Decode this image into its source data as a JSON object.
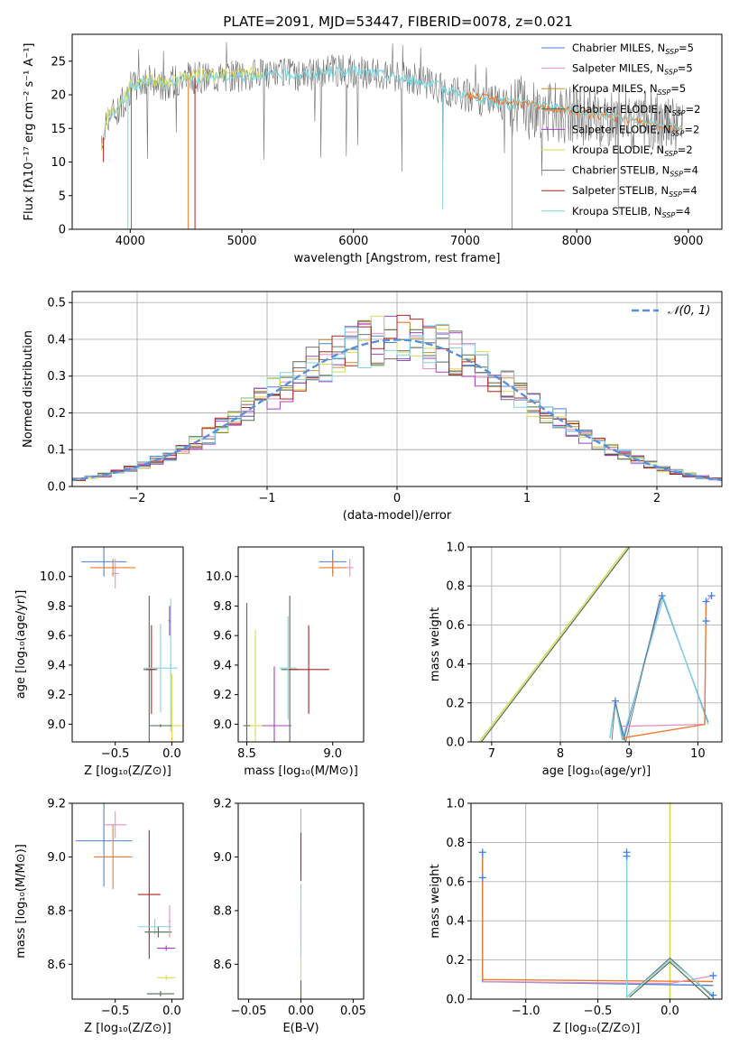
{
  "figure": {
    "title": "PLATE=2091, MJD=53447, FIBERID=0078, z=0.021",
    "colors": {
      "chabrier_miles": "#4a80d8",
      "salpeter_miles": "#e98fbf",
      "kroupa_miles": "#c8902c",
      "chabrier_elodie": "#4f6f4f",
      "salpeter_elodie": "#a040c0",
      "kroupa_elodie": "#dada55",
      "chabrier_stelib": "#707070",
      "salpeter_stelib": "#b22222",
      "kroupa_stelib": "#7fd6dc",
      "orange": "#ed7a2e",
      "normal": "#5b8fdd",
      "grid": "#b0b0b0"
    }
  },
  "chart_data": [
    {
      "id": "spectrum",
      "type": "line",
      "title": "PLATE=2091, MJD=53447, FIBERID=0078, z=0.021",
      "xlabel": "wavelength [Angstrom, rest frame]",
      "ylabel": "Flux [fλ10⁻¹⁷ erg cm⁻² s⁻¹ A⁻¹]",
      "xlim": [
        3480,
        9300
      ],
      "ylim": [
        0,
        29
      ],
      "xticks": [
        4000,
        5000,
        6000,
        7000,
        8000,
        9000
      ],
      "yticks": [
        0,
        5,
        10,
        15,
        20,
        25
      ],
      "grid": false,
      "legend_position": "top-right",
      "series": [
        {
          "name": "Chabrier MILES, N_SSP=5",
          "label": "Chabrier MILES, N",
          "sub": "SSP",
          "suffix": "=5"
        },
        {
          "name": "Salpeter MILES, N_SSP=5",
          "label": "Salpeter MILES, N",
          "sub": "SSP",
          "suffix": "=5"
        },
        {
          "name": "Kroupa MILES, N_SSP=5",
          "label": "Kroupa MILES, N",
          "sub": "SSP",
          "suffix": "=5"
        },
        {
          "name": "Chabrier ELODIE, N_SSP=2",
          "label": "Chabrier ELODIE, N",
          "sub": "SSP",
          "suffix": "=2"
        },
        {
          "name": "Salpeter ELODIE, N_SSP=2",
          "label": "Salpeter ELODIE, N",
          "sub": "SSP",
          "suffix": "=2"
        },
        {
          "name": "Kroupa ELODIE, N_SSP=2",
          "label": "Kroupa ELODIE, N",
          "sub": "SSP",
          "suffix": "=2"
        },
        {
          "name": "Chabrier STELIB, N_SSP=4",
          "label": "Chabrier STELIB, N",
          "sub": "SSP",
          "suffix": "=4"
        },
        {
          "name": "Salpeter STELIB, N_SSP=4",
          "label": "Salpeter STELIB, N",
          "sub": "SSP",
          "suffix": "=4"
        },
        {
          "name": "Kroupa STELIB, N_SSP=4",
          "label": "Kroupa STELIB, N",
          "sub": "SSP",
          "suffix": "=4"
        }
      ],
      "continuum": {
        "x": [
          3740,
          3800,
          3900,
          4000,
          4100,
          4200,
          4300,
          4400,
          4500,
          4600,
          4800,
          5000,
          5200,
          5400,
          5600,
          5800,
          6000,
          6200,
          6400,
          6600,
          6800,
          7000,
          7200,
          7400
        ],
        "y": [
          12,
          17,
          18,
          21,
          22,
          22,
          21.5,
          22,
          22.5,
          22.5,
          22.8,
          22.8,
          23,
          23,
          23,
          23.5,
          23.5,
          23.2,
          22.5,
          22,
          21,
          20,
          19,
          18.5
        ]
      },
      "model_x_range": [
        4500,
        8950
      ],
      "model_y": [
        20.5,
        18,
        17.5,
        17,
        16,
        15
      ],
      "noise_amplitude": 2.5
    },
    {
      "id": "residuals",
      "type": "line",
      "xlabel": "(data-model)/error",
      "ylabel": "Normed distribution",
      "xlim": [
        -2.5,
        2.5
      ],
      "ylim": [
        0,
        0.53
      ],
      "xticks": [
        -2,
        -1,
        0,
        1,
        2
      ],
      "yticks": [
        0.0,
        0.1,
        0.2,
        0.3,
        0.4,
        0.5
      ],
      "grid": true,
      "legend": [
        {
          "name": "N(0,1)",
          "label": "𝒩(0, 1)"
        }
      ],
      "legend_position": "top-right",
      "bin_width": 0.1
    },
    {
      "id": "age_vs_z",
      "type": "scatter",
      "xlabel": "Z [log₁₀(Z/Z⊙)]",
      "ylabel": "age  [log₁₀(age/yr)]",
      "xlim": [
        -0.88,
        0.1
      ],
      "ylim": [
        8.88,
        10.2
      ],
      "xticks": [
        -0.5,
        0.0
      ],
      "yticks": [
        9.0,
        9.2,
        9.4,
        9.6,
        9.8,
        10.0
      ],
      "grid": false
    },
    {
      "id": "age_vs_mass",
      "type": "scatter",
      "xlabel": "mass [log₁₀(M/M⊙)]",
      "ylabel": "",
      "xlim": [
        8.45,
        9.18
      ],
      "ylim": [
        8.88,
        10.2
      ],
      "xticks": [
        8.5,
        9.0
      ],
      "yticks": [
        9.0,
        9.2,
        9.4,
        9.6,
        9.8,
        10.0
      ],
      "grid": false
    },
    {
      "id": "weight_vs_age",
      "type": "line",
      "xlabel": "age  [log₁₀(age/yr)]",
      "ylabel": "mass weight",
      "xlim": [
        6.7,
        10.35
      ],
      "ylim": [
        0,
        1.0
      ],
      "xticks": [
        7,
        8,
        9,
        10
      ],
      "yticks": [
        0.0,
        0.2,
        0.4,
        0.6,
        0.8,
        1.0
      ],
      "grid": true
    },
    {
      "id": "mass_vs_z",
      "type": "scatter",
      "xlabel": "Z [log₁₀(Z/Z⊙)]",
      "ylabel": "mass [log₁₀(M/M⊙)]",
      "xlim": [
        -0.88,
        0.1
      ],
      "ylim": [
        8.47,
        9.2
      ],
      "xticks": [
        -0.5,
        0.0
      ],
      "yticks": [
        8.6,
        8.8,
        9.0,
        9.2
      ],
      "grid": false
    },
    {
      "id": "mass_vs_ebv",
      "type": "scatter",
      "xlabel": "E(B-V)",
      "ylabel": "",
      "xlim": [
        -0.06,
        0.06
      ],
      "ylim": [
        8.47,
        9.2
      ],
      "xticks": [
        -0.05,
        0.0,
        0.05
      ],
      "yticks": [
        8.6,
        8.8,
        9.0,
        9.2
      ],
      "grid": false
    },
    {
      "id": "weight_vs_z",
      "type": "line",
      "xlabel": "Z [log₁₀(Z/Z⊙)]",
      "ylabel": "mass weight",
      "xlim": [
        -1.38,
        0.36
      ],
      "ylim": [
        0,
        1.0
      ],
      "xticks": [
        -1.0,
        -0.5,
        0.0
      ],
      "yticks": [
        0.0,
        0.2,
        0.4,
        0.6,
        0.8,
        1.0
      ],
      "grid": true
    }
  ]
}
